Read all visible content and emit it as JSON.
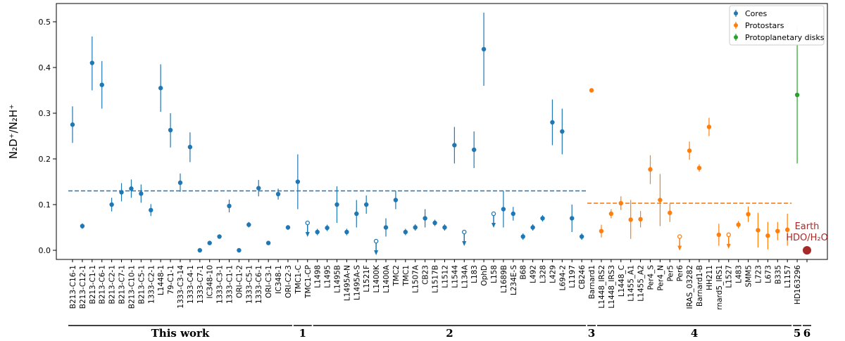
{
  "chart_data": {
    "type": "scatter",
    "ylabel": "N₂D⁺/N₂H⁺",
    "ylim": [
      -0.02,
      0.54
    ],
    "yticks": [
      "0.0",
      "0.1",
      "0.2",
      "0.3",
      "0.4",
      "0.5"
    ],
    "ytick_values": [
      0,
      0.1,
      0.2,
      0.3,
      0.4,
      0.5
    ],
    "colors": {
      "cores": "#1f77b4",
      "protostars": "#ff7f0e",
      "disks": "#2ca02c",
      "earth": "#a52a2a"
    },
    "legend": {
      "placement": "top-right",
      "entries": [
        {
          "name": "Cores",
          "color": "#1f77b4"
        },
        {
          "name": "Protostars",
          "color": "#ff7f0e"
        },
        {
          "name": "Protoplanetary disks",
          "color": "#2ca02c"
        }
      ]
    },
    "categories": [
      "B213-C16-1",
      "B213-C12-1",
      "B213-C1-1",
      "B213-C6-1",
      "B213-C2-1",
      "B213-C7-1",
      "B213-C10-1",
      "B213-C5-1",
      "1333-C2-1",
      "L1448-1",
      "79-C1-1",
      "1333-C3-14",
      "1333-C4-1",
      "1333-C7-1",
      "IC348-10",
      "1333-C3-1",
      "1333-C1-1",
      "ORI-C1-2",
      "1333-C5-1",
      "1333-C6-1",
      "ORI-C3-1",
      "IC348-1",
      "ORI-C2-3",
      "TMC1-C",
      "TMC1-CP",
      "L1498",
      "L1495",
      "L1495B",
      "L1495A-N",
      "L1495A-S",
      "L1521F",
      "L1400K",
      "L1400A",
      "TMC2",
      "TMC1",
      "L1507A",
      "CB23",
      "L1517B",
      "L1512",
      "L1544",
      "L134A",
      "L183",
      "OphD",
      "L158",
      "L1689B",
      "L234E-S",
      "B68",
      "L492",
      "L328",
      "L429",
      "L694-2",
      "L1197",
      "CB246",
      "Barnard1",
      "L1448_IRS2",
      "L1448_IRS3",
      "L1448_C",
      "L1455_A1",
      "L1455_A2",
      "Per4_S",
      "Per4_N",
      "Per5",
      "Per6",
      "IRAS_03282",
      "Barnard1-B",
      "HH211",
      "rnard5_IRS1",
      "L1527",
      "L483",
      "SMM5",
      "L723",
      "L673",
      "B335",
      "L1157",
      "HD163296",
      ""
    ],
    "series": [
      {
        "name": "Cores",
        "color": "#1f77b4",
        "points": [
          {
            "label": "B213-C16-1",
            "y": 0.275,
            "lo": 0.235,
            "hi": 0.315
          },
          {
            "label": "B213-C12-1",
            "y": 0.053,
            "lo": 0.047,
            "hi": 0.059
          },
          {
            "label": "B213-C1-1",
            "y": 0.41,
            "lo": 0.35,
            "hi": 0.468
          },
          {
            "label": "B213-C6-1",
            "y": 0.362,
            "lo": 0.31,
            "hi": 0.414
          },
          {
            "label": "B213-C2-1",
            "y": 0.1,
            "lo": 0.085,
            "hi": 0.115
          },
          {
            "label": "B213-C7-1",
            "y": 0.127,
            "lo": 0.107,
            "hi": 0.147
          },
          {
            "label": "B213-C10-1",
            "y": 0.135,
            "lo": 0.115,
            "hi": 0.155
          },
          {
            "label": "B213-C5-1",
            "y": 0.124,
            "lo": 0.104,
            "hi": 0.144
          },
          {
            "label": "1333-C2-1",
            "y": 0.088,
            "lo": 0.075,
            "hi": 0.101
          },
          {
            "label": "L1448-1",
            "y": 0.355,
            "lo": 0.303,
            "hi": 0.407
          },
          {
            "label": "79-C1-1",
            "y": 0.263,
            "lo": 0.225,
            "hi": 0.3
          },
          {
            "label": "1333-C3-14",
            "y": 0.148,
            "lo": 0.128,
            "hi": 0.168
          },
          {
            "label": "1333-C4-1",
            "y": 0.226,
            "lo": 0.193,
            "hi": 0.258
          },
          {
            "label": "1333-C7-1",
            "y": 0.0
          },
          {
            "label": "IC348-10",
            "y": 0.016
          },
          {
            "label": "1333-C3-1",
            "y": 0.03
          },
          {
            "label": "1333-C1-1",
            "y": 0.097,
            "lo": 0.083,
            "hi": 0.111
          },
          {
            "label": "ORI-C1-2",
            "y": 0.0
          },
          {
            "label": "1333-C5-1",
            "y": 0.056,
            "lo": 0.05,
            "hi": 0.062
          },
          {
            "label": "1333-C6-1",
            "y": 0.136,
            "lo": 0.118,
            "hi": 0.154
          },
          {
            "label": "ORI-C3-1",
            "y": 0.016
          },
          {
            "label": "IC348-1",
            "y": 0.123,
            "lo": 0.111,
            "hi": 0.135
          },
          {
            "label": "ORI-C2-3",
            "y": 0.05,
            "lo": 0.045,
            "hi": 0.055
          },
          {
            "label": "TMC1-C",
            "y": 0.15,
            "lo": 0.09,
            "hi": 0.21
          },
          {
            "label": "TMC1-CP",
            "y": 0.06,
            "upper_limit": true
          },
          {
            "label": "L1498",
            "y": 0.04,
            "lo": 0.033,
            "hi": 0.047
          },
          {
            "label": "L1495",
            "y": 0.049,
            "lo": 0.042,
            "hi": 0.056
          },
          {
            "label": "L1495B",
            "y": 0.1,
            "lo": 0.06,
            "hi": 0.14
          },
          {
            "label": "L1495A-N",
            "y": 0.04,
            "lo": 0.033,
            "hi": 0.047
          },
          {
            "label": "L1495A-S",
            "y": 0.08,
            "lo": 0.05,
            "hi": 0.11
          },
          {
            "label": "L1521F",
            "y": 0.1,
            "lo": 0.08,
            "hi": 0.12
          },
          {
            "label": "L1400K",
            "y": 0.02,
            "upper_limit": true
          },
          {
            "label": "L1400A",
            "y": 0.05,
            "lo": 0.03,
            "hi": 0.07
          },
          {
            "label": "TMC2",
            "y": 0.11,
            "lo": 0.09,
            "hi": 0.13
          },
          {
            "label": "TMC1",
            "y": 0.04,
            "lo": 0.033,
            "hi": 0.047
          },
          {
            "label": "L1507A",
            "y": 0.05,
            "lo": 0.043,
            "hi": 0.057
          },
          {
            "label": "CB23",
            "y": 0.07,
            "lo": 0.05,
            "hi": 0.09
          },
          {
            "label": "L1517B",
            "y": 0.06,
            "lo": 0.053,
            "hi": 0.067
          },
          {
            "label": "L1512",
            "y": 0.05,
            "lo": 0.043,
            "hi": 0.057
          },
          {
            "label": "L1544",
            "y": 0.23,
            "lo": 0.19,
            "hi": 0.27
          },
          {
            "label": "L134A",
            "y": 0.04,
            "upper_limit": true
          },
          {
            "label": "L183",
            "y": 0.22,
            "lo": 0.18,
            "hi": 0.26
          },
          {
            "label": "OphD",
            "y": 0.44,
            "lo": 0.36,
            "hi": 0.52
          },
          {
            "label": "L158",
            "y": 0.08,
            "upper_limit": true
          },
          {
            "label": "L1689B",
            "y": 0.09,
            "lo": 0.05,
            "hi": 0.13
          },
          {
            "label": "L234E-S",
            "y": 0.08,
            "lo": 0.065,
            "hi": 0.095
          },
          {
            "label": "B68",
            "y": 0.03,
            "lo": 0.023,
            "hi": 0.037
          },
          {
            "label": "L492",
            "y": 0.05,
            "lo": 0.043,
            "hi": 0.057
          },
          {
            "label": "L328",
            "y": 0.07,
            "lo": 0.063,
            "hi": 0.077
          },
          {
            "label": "L429",
            "y": 0.28,
            "lo": 0.23,
            "hi": 0.33
          },
          {
            "label": "L694-2",
            "y": 0.26,
            "lo": 0.21,
            "hi": 0.31
          },
          {
            "label": "L1197",
            "y": 0.07,
            "lo": 0.04,
            "hi": 0.1
          },
          {
            "label": "CB246",
            "y": 0.03,
            "lo": 0.023,
            "hi": 0.037
          }
        ]
      },
      {
        "name": "Protostars",
        "color": "#ff7f0e",
        "points": [
          {
            "label": "Barnard1",
            "y": 0.35
          },
          {
            "label": "L1448_IRS2",
            "y": 0.042,
            "lo": 0.028,
            "hi": 0.056
          },
          {
            "label": "L1448_IRS3",
            "y": 0.08,
            "lo": 0.07,
            "hi": 0.09
          },
          {
            "label": "L1448_C",
            "y": 0.103,
            "lo": 0.088,
            "hi": 0.118
          },
          {
            "label": "L1455_A1",
            "y": 0.067,
            "lo": 0.025,
            "hi": 0.11
          },
          {
            "label": "L1455_A2",
            "y": 0.068,
            "lo": 0.05,
            "hi": 0.086
          },
          {
            "label": "Per4_S",
            "y": 0.177,
            "lo": 0.145,
            "hi": 0.208
          },
          {
            "label": "Per4_N",
            "y": 0.11,
            "lo": 0.053,
            "hi": 0.167
          },
          {
            "label": "Per5",
            "y": 0.082,
            "lo": 0.062,
            "hi": 0.102
          },
          {
            "label": "Per6",
            "y": 0.03,
            "upper_limit": true
          },
          {
            "label": "IRAS_03282",
            "y": 0.218,
            "lo": 0.198,
            "hi": 0.238
          },
          {
            "label": "Barnard1-B",
            "y": 0.18,
            "lo": 0.172,
            "hi": 0.188
          },
          {
            "label": "HH211",
            "y": 0.27,
            "lo": 0.25,
            "hi": 0.29
          },
          {
            "label": "rnard5_IRS1",
            "y": 0.034,
            "lo": 0.01,
            "hi": 0.058
          },
          {
            "label": "L1527",
            "y": 0.034,
            "upper_limit": true
          },
          {
            "label": "L483",
            "y": 0.056,
            "lo": 0.048,
            "hi": 0.064
          },
          {
            "label": "SMM5",
            "y": 0.079,
            "lo": 0.062,
            "hi": 0.096
          },
          {
            "label": "L723",
            "y": 0.044,
            "lo": 0.006,
            "hi": 0.082
          },
          {
            "label": "L673",
            "y": 0.032,
            "lo": 0.002,
            "hi": 0.062
          },
          {
            "label": "B335",
            "y": 0.042,
            "lo": 0.022,
            "hi": 0.062
          },
          {
            "label": "L1157",
            "y": 0.045,
            "lo": 0.01,
            "hi": 0.08
          }
        ]
      },
      {
        "name": "Protoplanetary disks",
        "color": "#2ca02c",
        "points": [
          {
            "label": "HD163296",
            "y": 0.34,
            "lo": 0.19,
            "hi": 0.49
          }
        ]
      }
    ],
    "mean_lines": [
      {
        "name": "cores-mean",
        "y": 0.13,
        "from": "B213-C16-1",
        "to": "CB246",
        "color": "#1f77b4"
      },
      {
        "name": "protostars-mean",
        "y": 0.103,
        "from": "Barnard1",
        "to": "L1157",
        "color": "#ff7f0e"
      }
    ],
    "annotation": {
      "line1": "Earth",
      "line2": "HDO/H₂O",
      "y": 0.0,
      "color": "#a52a2a"
    },
    "groups": [
      {
        "label": "This work",
        "from": "B213-C16-1",
        "to": "ORI-C2-3"
      },
      {
        "label": "1",
        "from": "TMC1-C",
        "to": "TMC1-CP"
      },
      {
        "label": "2",
        "from": "L1498",
        "to": "CB246"
      },
      {
        "label": "3",
        "from": "Barnard1",
        "to": "Barnard1"
      },
      {
        "label": "4",
        "from": "L1448_IRS2",
        "to": "L1157"
      },
      {
        "label": "5",
        "from": "HD163296",
        "to": "HD163296"
      },
      {
        "label": "6",
        "from": "",
        "to": ""
      }
    ]
  }
}
